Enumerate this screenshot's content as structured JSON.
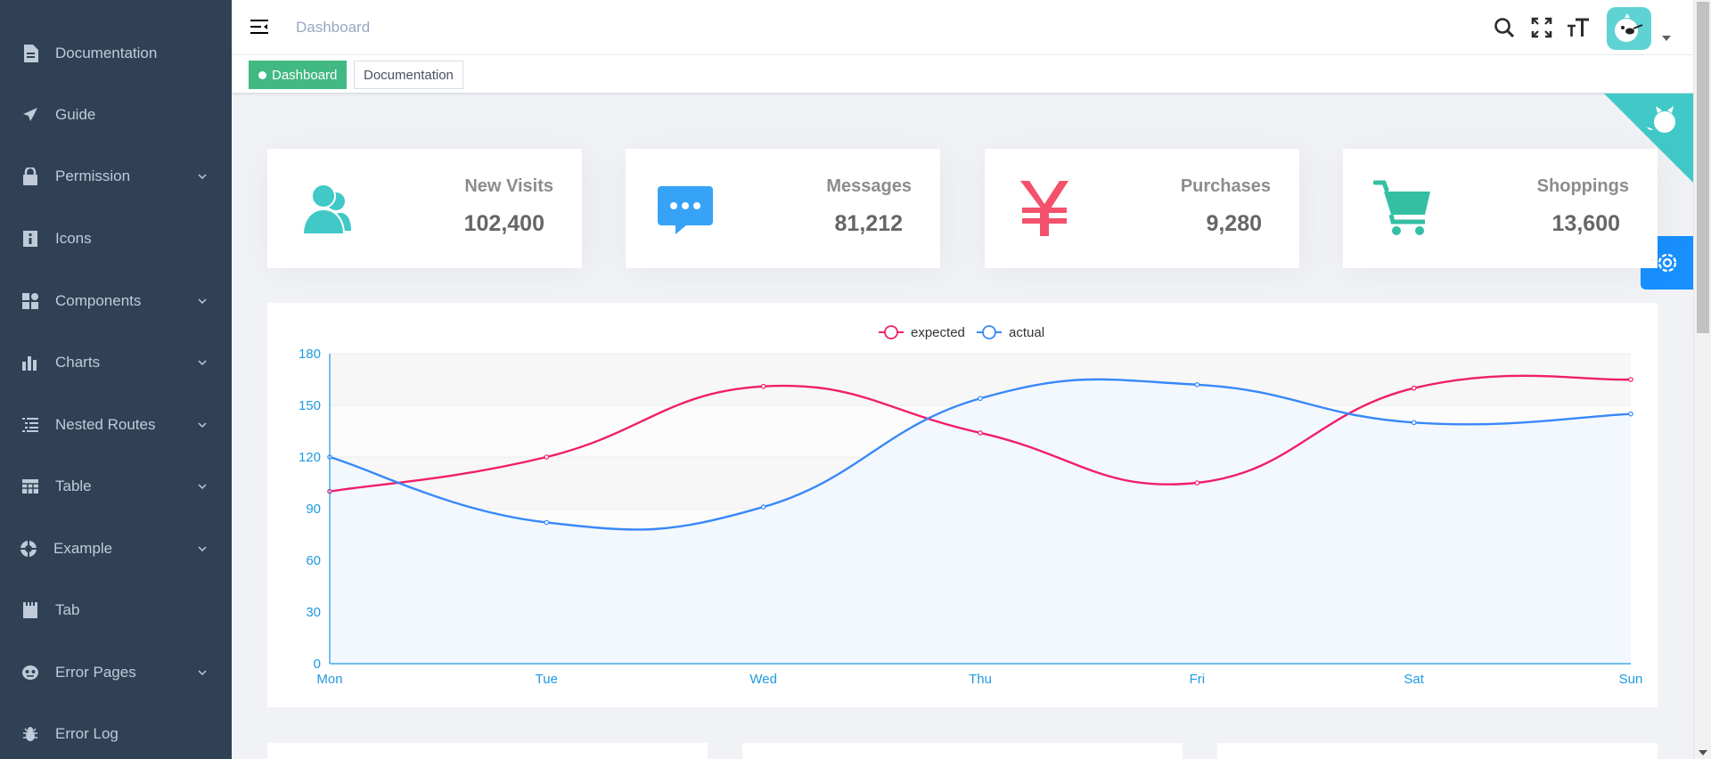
{
  "sidebar": {
    "items": [
      {
        "label": "Documentation",
        "icon": "documentation-icon",
        "submenu": false
      },
      {
        "label": "Guide",
        "icon": "guide-icon",
        "submenu": false
      },
      {
        "label": "Permission",
        "icon": "lock-icon",
        "submenu": true
      },
      {
        "label": "Icons",
        "icon": "icon-icon",
        "submenu": false
      },
      {
        "label": "Components",
        "icon": "component-icon",
        "submenu": true
      },
      {
        "label": "Charts",
        "icon": "chart-icon",
        "submenu": true
      },
      {
        "label": "Nested Routes",
        "icon": "nested-icon",
        "submenu": true
      },
      {
        "label": "Table",
        "icon": "table-icon",
        "submenu": true
      },
      {
        "label": "Example",
        "icon": "example-icon",
        "submenu": true
      },
      {
        "label": "Tab",
        "icon": "tab-icon",
        "submenu": false
      },
      {
        "label": "Error Pages",
        "icon": "404-icon",
        "submenu": true
      },
      {
        "label": "Error Log",
        "icon": "bug-icon",
        "submenu": false
      }
    ]
  },
  "navbar": {
    "breadcrumb": "Dashboard"
  },
  "tags": [
    {
      "label": "Dashboard",
      "active": true
    },
    {
      "label": "Documentation",
      "active": false
    }
  ],
  "panels": [
    {
      "title": "New Visits",
      "value": "102,400",
      "icon": "peoples-icon",
      "color": "#40c9c6"
    },
    {
      "title": "Messages",
      "value": "81,212",
      "icon": "message-icon",
      "color": "#36a3f7"
    },
    {
      "title": "Purchases",
      "value": "9,280",
      "icon": "money-icon",
      "color": "#f4516c"
    },
    {
      "title": "Shoppings",
      "value": "13,600",
      "icon": "shopping-cart-icon",
      "color": "#34bfa3"
    }
  ],
  "chart_data": {
    "type": "line",
    "categories": [
      "Mon",
      "Tue",
      "Wed",
      "Thu",
      "Fri",
      "Sat",
      "Sun"
    ],
    "series": [
      {
        "name": "expected",
        "values": [
          100,
          120,
          161,
          134,
          105,
          160,
          165
        ],
        "color": "#f01e6a"
      },
      {
        "name": "actual",
        "values": [
          120,
          82,
          91,
          154,
          162,
          140,
          145
        ],
        "color": "#3888fa"
      }
    ],
    "ylim": [
      0,
      180
    ],
    "yticks": [
      "0",
      "30",
      "60",
      "90",
      "120",
      "150",
      "180"
    ],
    "smooth": true,
    "legend": "top-center",
    "axis_color": "#1f9ae0"
  }
}
